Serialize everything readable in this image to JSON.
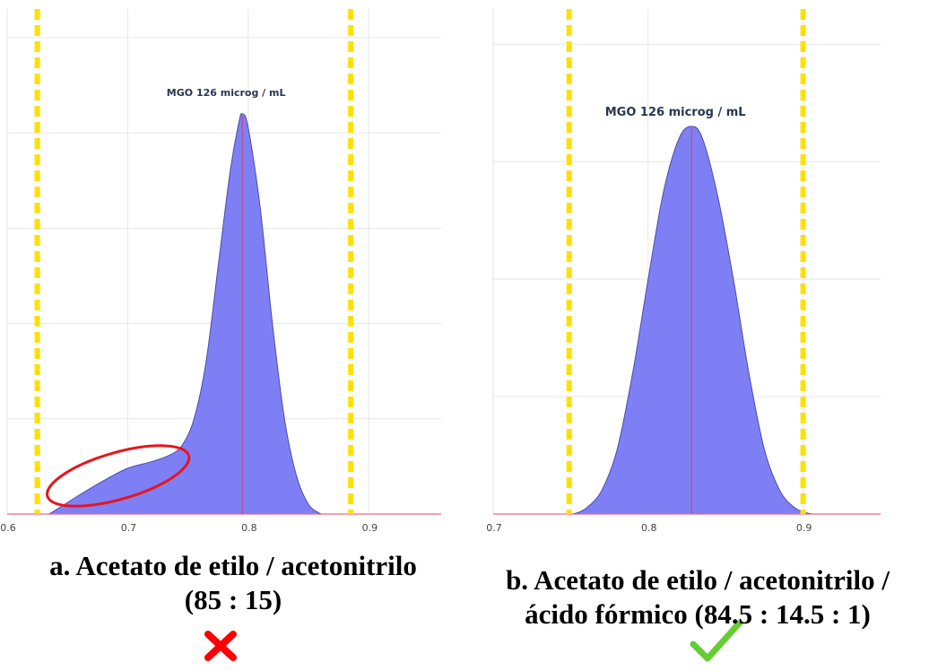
{
  "chart_data": [
    {
      "type": "area",
      "xlim": [
        0.6,
        0.96
      ],
      "x_ticks": [
        0.6,
        0.7,
        0.8,
        0.9
      ],
      "x_tick_labels": [
        "0.6",
        "0.7",
        "0.8",
        "0.9"
      ],
      "y_ticks": [
        0,
        1,
        2,
        3,
        4,
        5
      ],
      "ylim": [
        0,
        5.3
      ],
      "grid": true,
      "peak_annotation": "MGO 126 microg / mL",
      "peak_x": 0.795,
      "window_lines": [
        0.625,
        0.885
      ],
      "series": [
        {
          "x": [
            0.635,
            0.66,
            0.68,
            0.7,
            0.72,
            0.735,
            0.745,
            0.755,
            0.765,
            0.775,
            0.785,
            0.792,
            0.795,
            0.8,
            0.81,
            0.82,
            0.83,
            0.84,
            0.85,
            0.86
          ],
          "y": [
            0.0,
            0.2,
            0.35,
            0.48,
            0.55,
            0.62,
            0.72,
            1.0,
            1.6,
            2.6,
            3.6,
            4.1,
            4.2,
            4.05,
            3.2,
            2.0,
            1.0,
            0.4,
            0.1,
            0.0
          ]
        }
      ],
      "highlight": "ellipse",
      "caption_lines": [
        "a. Acetato de etilo / acetonitrilo",
        "(85 : 15)"
      ],
      "verdict_icon": "cross-icon",
      "verdict_color": "#ff0000"
    },
    {
      "type": "area",
      "xlim": [
        0.7,
        0.95
      ],
      "x_ticks": [
        0.7,
        0.8,
        0.9
      ],
      "x_tick_labels": [
        "0.7",
        "0.8",
        "0.9"
      ],
      "y_ticks": [
        0,
        1,
        2,
        3,
        4
      ],
      "ylim": [
        0,
        4.3
      ],
      "grid": true,
      "peak_annotation": "MGO 126 microg / mL",
      "peak_x": 0.828,
      "window_lines": [
        0.749,
        0.9
      ],
      "series": [
        {
          "x": [
            0.752,
            0.76,
            0.77,
            0.78,
            0.79,
            0.8,
            0.81,
            0.82,
            0.828,
            0.835,
            0.845,
            0.855,
            0.865,
            0.875,
            0.885,
            0.895,
            0.905
          ],
          "y": [
            0.0,
            0.05,
            0.2,
            0.55,
            1.2,
            2.0,
            2.75,
            3.2,
            3.3,
            3.2,
            2.7,
            2.0,
            1.2,
            0.55,
            0.2,
            0.05,
            0.0
          ]
        }
      ],
      "caption_lines": [
        "b. Acetato de etilo / acetonitrilo /",
        "ácido fórmico (84.5 : 14.5 : 1)"
      ],
      "verdict_icon": "check-icon",
      "verdict_color": "#66cc33"
    }
  ],
  "colors": {
    "fill": "#7f7ff5",
    "outline": "#4c4ca8",
    "peak_line": "#d04060",
    "baseline": "#f4a0a8",
    "grid": "#e6e6e6",
    "window": "#ffe000",
    "highlight": "#e8141b"
  }
}
